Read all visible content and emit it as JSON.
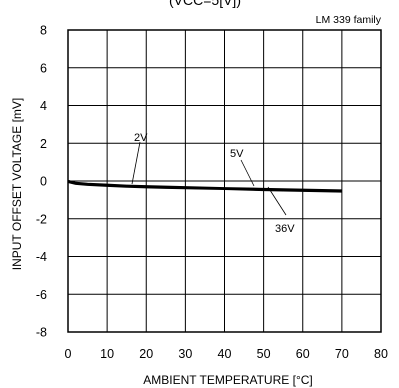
{
  "chart_data": {
    "type": "line",
    "title_partial": "(VCC=5[V])",
    "annotation_top_right": "LM 339 family",
    "xlabel": "AMBIENT TEMPERATURE [°C]",
    "ylabel": "INPUT OFFSET VOLTAGE [mV]",
    "xlim": [
      0,
      80
    ],
    "ylim": [
      -8,
      8
    ],
    "xticks": [
      "0",
      "10",
      "20",
      "30",
      "40",
      "50",
      "60",
      "70",
      "80"
    ],
    "yticks": [
      "8",
      "6",
      "4",
      "2",
      "0",
      "-2",
      "-4",
      "-6",
      "-8"
    ],
    "grid": true,
    "series": [
      {
        "name": "2V",
        "x": [
          0,
          2,
          5,
          10,
          15,
          20,
          25,
          30,
          40,
          50,
          60,
          70
        ],
        "y": [
          0.0,
          -0.1,
          -0.15,
          -0.2,
          -0.25,
          -0.28,
          -0.3,
          -0.33,
          -0.38,
          -0.42,
          -0.46,
          -0.5
        ]
      },
      {
        "name": "5V",
        "x": [
          0,
          2,
          5,
          10,
          15,
          20,
          25,
          30,
          40,
          50,
          60,
          70
        ],
        "y": [
          0.0,
          -0.12,
          -0.18,
          -0.22,
          -0.28,
          -0.3,
          -0.33,
          -0.36,
          -0.4,
          -0.45,
          -0.5,
          -0.54
        ]
      },
      {
        "name": "36V",
        "x": [
          0,
          2,
          5,
          10,
          15,
          20,
          25,
          30,
          40,
          50,
          60,
          70
        ],
        "y": [
          -0.05,
          -0.15,
          -0.2,
          -0.25,
          -0.3,
          -0.33,
          -0.36,
          -0.38,
          -0.42,
          -0.48,
          -0.52,
          -0.56
        ]
      }
    ],
    "series_labels": [
      "2V",
      "5V",
      "36V"
    ]
  }
}
